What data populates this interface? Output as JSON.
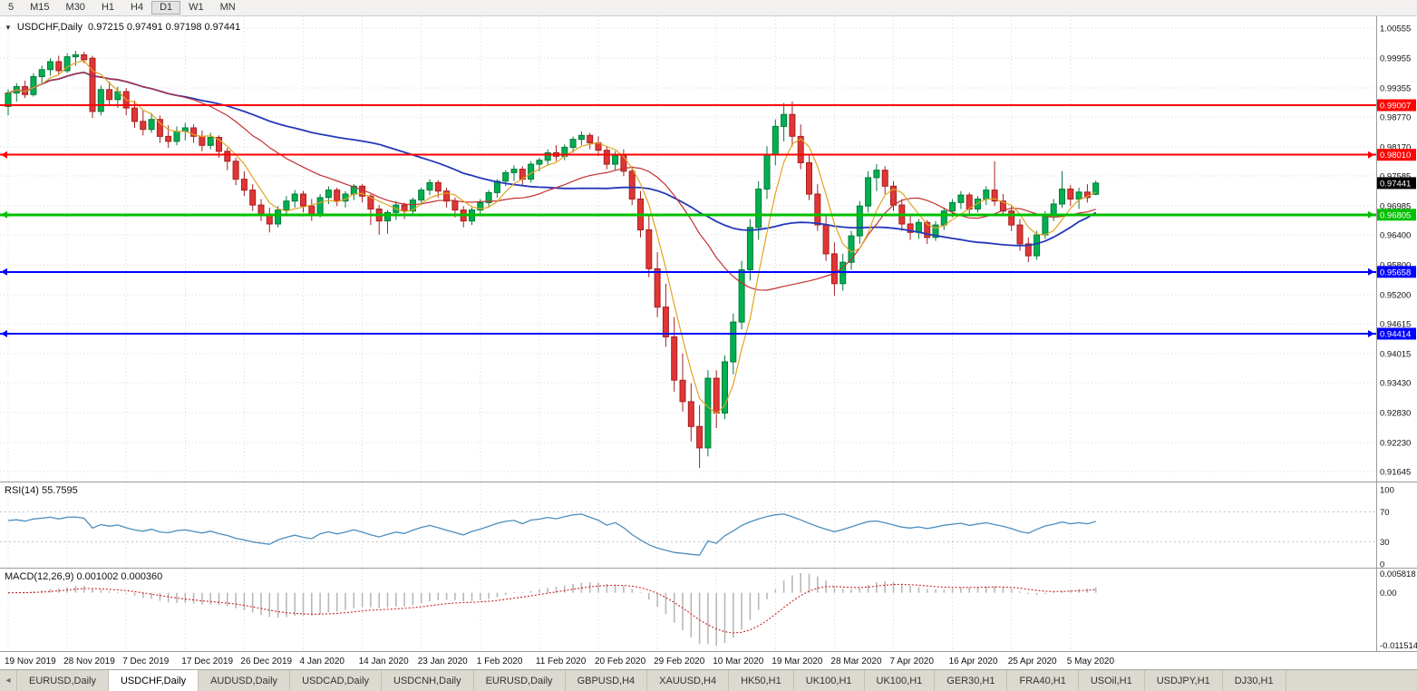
{
  "toolbar": {
    "timeframes": [
      {
        "label": "5"
      },
      {
        "label": "M15"
      },
      {
        "label": "M30"
      },
      {
        "label": "H1"
      },
      {
        "label": "H4"
      },
      {
        "label": "D1",
        "active": true
      },
      {
        "label": "W1"
      },
      {
        "label": "MN"
      }
    ]
  },
  "chart_header": {
    "symbol": "USDCHF,Daily",
    "ohlc": "0.97215 0.97491 0.97198 0.97441"
  },
  "rsi": {
    "label": "RSI(14) 55.7595"
  },
  "macd": {
    "label": "MACD(12,26,9) 0.001002 0.000360"
  },
  "tabbar": {
    "scroll_icon": "◂"
  },
  "tabs": [
    {
      "label": "EURUSD,Daily"
    },
    {
      "label": "USDCHF,Daily",
      "active": true
    },
    {
      "label": "AUDUSD,Daily"
    },
    {
      "label": "USDCAD,Daily"
    },
    {
      "label": "USDCNH,Daily"
    },
    {
      "label": "EURUSD,Daily"
    },
    {
      "label": "GBPUSD,H4"
    },
    {
      "label": "XAUUSD,H4"
    },
    {
      "label": "HK50,H1"
    },
    {
      "label": "UK100,H1"
    },
    {
      "label": "UK100,H1"
    },
    {
      "label": "GER30,H1"
    },
    {
      "label": "FRA40,H1"
    },
    {
      "label": "USOil,H1"
    },
    {
      "label": "USDJPY,H1"
    },
    {
      "label": "DJ30,H1"
    }
  ],
  "chart_data": {
    "type": "candlestick",
    "symbol": "USDCHF",
    "timeframe": "Daily",
    "price_axis": [
      "1.00555",
      "0.99955",
      "0.99355",
      "0.98770",
      "0.98170",
      "0.97585",
      "0.96985",
      "0.96400",
      "0.95800",
      "0.95200",
      "0.94615",
      "0.94015",
      "0.93430",
      "0.92830",
      "0.92230",
      "0.91645"
    ],
    "time_axis": [
      {
        "label": "19 Nov 2019",
        "index": 0
      },
      {
        "label": "28 Nov 2019",
        "index": 7
      },
      {
        "label": "7 Dec 2019",
        "index": 14
      },
      {
        "label": "17 Dec 2019",
        "index": 21
      },
      {
        "label": "26 Dec 2019",
        "index": 28
      },
      {
        "label": "4 Jan 2020",
        "index": 35
      },
      {
        "label": "14 Jan 2020",
        "index": 42
      },
      {
        "label": "23 Jan 2020",
        "index": 49
      },
      {
        "label": "1 Feb 2020",
        "index": 56
      },
      {
        "label": "11 Feb 2020",
        "index": 63
      },
      {
        "label": "20 Feb 2020",
        "index": 70
      },
      {
        "label": "29 Feb 2020",
        "index": 77
      },
      {
        "label": "10 Mar 2020",
        "index": 84
      },
      {
        "label": "19 Mar 2020",
        "index": 91
      },
      {
        "label": "28 Mar 2020",
        "index": 98
      },
      {
        "label": "7 Apr 2020",
        "index": 105
      },
      {
        "label": "16 Apr 2020",
        "index": 112
      },
      {
        "label": "25 Apr 2020",
        "index": 119
      },
      {
        "label": "5 May 2020",
        "index": 126
      }
    ],
    "candles": [
      [
        0.9898,
        0.9932,
        0.988,
        0.9925
      ],
      [
        0.9925,
        0.9945,
        0.9908,
        0.9938
      ],
      [
        0.9938,
        0.995,
        0.9915,
        0.9922
      ],
      [
        0.9922,
        0.9965,
        0.9918,
        0.9958
      ],
      [
        0.9958,
        0.998,
        0.9945,
        0.9972
      ],
      [
        0.9972,
        0.9995,
        0.996,
        0.9988
      ],
      [
        0.9988,
        1.0,
        0.9962,
        0.997
      ],
      [
        0.997,
        1.0005,
        0.9965,
        0.9998
      ],
      [
        0.9998,
        1.001,
        0.998,
        1.0002
      ],
      [
        1.0002,
        1.0008,
        0.9985,
        0.9992
      ],
      [
        0.9995,
        1.0,
        0.9875,
        0.9888
      ],
      [
        0.9888,
        0.994,
        0.988,
        0.9932
      ],
      [
        0.9932,
        0.9948,
        0.99,
        0.9912
      ],
      [
        0.9912,
        0.9938,
        0.9895,
        0.9928
      ],
      [
        0.9928,
        0.9935,
        0.988,
        0.9895
      ],
      [
        0.9895,
        0.991,
        0.9855,
        0.9868
      ],
      [
        0.9868,
        0.989,
        0.984,
        0.9852
      ],
      [
        0.9852,
        0.9885,
        0.9845,
        0.9872
      ],
      [
        0.9872,
        0.988,
        0.9825,
        0.9838
      ],
      [
        0.9838,
        0.986,
        0.9815,
        0.9828
      ],
      [
        0.9828,
        0.9858,
        0.982,
        0.9848
      ],
      [
        0.9848,
        0.9865,
        0.983,
        0.9855
      ],
      [
        0.9855,
        0.9862,
        0.9825,
        0.9838
      ],
      [
        0.9838,
        0.985,
        0.9808,
        0.982
      ],
      [
        0.982,
        0.9845,
        0.9812,
        0.9836
      ],
      [
        0.9836,
        0.984,
        0.9795,
        0.9808
      ],
      [
        0.9808,
        0.9815,
        0.977,
        0.9788
      ],
      [
        0.9788,
        0.9795,
        0.974,
        0.9752
      ],
      [
        0.9752,
        0.9768,
        0.9718,
        0.973
      ],
      [
        0.973,
        0.9742,
        0.9688,
        0.97
      ],
      [
        0.97,
        0.9712,
        0.9668,
        0.968
      ],
      [
        0.968,
        0.9695,
        0.9645,
        0.9662
      ],
      [
        0.9662,
        0.9698,
        0.9655,
        0.969
      ],
      [
        0.969,
        0.9718,
        0.968,
        0.9708
      ],
      [
        0.9708,
        0.973,
        0.9695,
        0.9722
      ],
      [
        0.9722,
        0.9728,
        0.9685,
        0.9698
      ],
      [
        0.9698,
        0.9712,
        0.9668,
        0.9682
      ],
      [
        0.9682,
        0.9722,
        0.9675,
        0.9715
      ],
      [
        0.9715,
        0.9738,
        0.9702,
        0.973
      ],
      [
        0.973,
        0.9735,
        0.9698,
        0.9708
      ],
      [
        0.9708,
        0.9728,
        0.9695,
        0.9722
      ],
      [
        0.9722,
        0.9742,
        0.971,
        0.9738
      ],
      [
        0.9738,
        0.9742,
        0.9705,
        0.9718
      ],
      [
        0.9718,
        0.9722,
        0.966,
        0.9692
      ],
      [
        0.9692,
        0.97,
        0.964,
        0.9668
      ],
      [
        0.9668,
        0.969,
        0.9642,
        0.9685
      ],
      [
        0.9685,
        0.9708,
        0.967,
        0.97
      ],
      [
        0.97,
        0.9705,
        0.9672,
        0.9688
      ],
      [
        0.9688,
        0.9715,
        0.968,
        0.971
      ],
      [
        0.971,
        0.9735,
        0.97,
        0.973
      ],
      [
        0.973,
        0.9752,
        0.972,
        0.9745
      ],
      [
        0.9745,
        0.975,
        0.9715,
        0.9728
      ],
      [
        0.9728,
        0.9735,
        0.9695,
        0.9708
      ],
      [
        0.9708,
        0.9715,
        0.9675,
        0.969
      ],
      [
        0.969,
        0.9698,
        0.9655,
        0.9668
      ],
      [
        0.9668,
        0.9695,
        0.966,
        0.969
      ],
      [
        0.969,
        0.9712,
        0.968,
        0.9705
      ],
      [
        0.9705,
        0.973,
        0.9695,
        0.9725
      ],
      [
        0.9725,
        0.9752,
        0.9715,
        0.9748
      ],
      [
        0.9748,
        0.977,
        0.9738,
        0.9765
      ],
      [
        0.9765,
        0.978,
        0.9748,
        0.9772
      ],
      [
        0.9772,
        0.9778,
        0.974,
        0.9752
      ],
      [
        0.9752,
        0.9788,
        0.9745,
        0.9782
      ],
      [
        0.9782,
        0.9795,
        0.9768,
        0.979
      ],
      [
        0.979,
        0.9812,
        0.978,
        0.9805
      ],
      [
        0.9805,
        0.982,
        0.9788,
        0.9798
      ],
      [
        0.9798,
        0.9822,
        0.979,
        0.9816
      ],
      [
        0.9816,
        0.9838,
        0.9805,
        0.9832
      ],
      [
        0.9832,
        0.9848,
        0.982,
        0.984
      ],
      [
        0.984,
        0.9845,
        0.9812,
        0.9825
      ],
      [
        0.9825,
        0.9838,
        0.9798,
        0.981
      ],
      [
        0.981,
        0.9818,
        0.9772,
        0.9782
      ],
      [
        0.9782,
        0.9808,
        0.977,
        0.98
      ],
      [
        0.98,
        0.9812,
        0.9758,
        0.9768
      ],
      [
        0.9768,
        0.9778,
        0.97,
        0.9712
      ],
      [
        0.9712,
        0.9728,
        0.9635,
        0.965
      ],
      [
        0.965,
        0.968,
        0.9555,
        0.9572
      ],
      [
        0.9572,
        0.9605,
        0.9475,
        0.9495
      ],
      [
        0.9495,
        0.9542,
        0.9415,
        0.9435
      ],
      [
        0.9435,
        0.9475,
        0.9325,
        0.9348
      ],
      [
        0.9348,
        0.9402,
        0.9285,
        0.9305
      ],
      [
        0.9305,
        0.9342,
        0.9225,
        0.9255
      ],
      [
        0.9255,
        0.9298,
        0.9172,
        0.9212
      ],
      [
        0.9212,
        0.9368,
        0.9195,
        0.9352
      ],
      [
        0.9352,
        0.9368,
        0.9252,
        0.9282
      ],
      [
        0.9282,
        0.9398,
        0.927,
        0.9385
      ],
      [
        0.9385,
        0.9482,
        0.936,
        0.9465
      ],
      [
        0.9465,
        0.9588,
        0.945,
        0.957
      ],
      [
        0.957,
        0.9672,
        0.9548,
        0.9655
      ],
      [
        0.9655,
        0.9748,
        0.963,
        0.9732
      ],
      [
        0.9732,
        0.9818,
        0.9712,
        0.9802
      ],
      [
        0.9802,
        0.9872,
        0.978,
        0.9858
      ],
      [
        0.9858,
        0.9905,
        0.9828,
        0.9882
      ],
      [
        0.9882,
        0.9908,
        0.9818,
        0.9838
      ],
      [
        0.9838,
        0.9862,
        0.9772,
        0.9785
      ],
      [
        0.9785,
        0.98,
        0.971,
        0.9722
      ],
      [
        0.9722,
        0.9742,
        0.9648,
        0.966
      ],
      [
        0.966,
        0.968,
        0.9588,
        0.9602
      ],
      [
        0.9602,
        0.9625,
        0.9518,
        0.9542
      ],
      [
        0.9542,
        0.9602,
        0.9528,
        0.9585
      ],
      [
        0.9585,
        0.9648,
        0.957,
        0.9638
      ],
      [
        0.9638,
        0.9708,
        0.9622,
        0.9698
      ],
      [
        0.9698,
        0.9768,
        0.9685,
        0.9755
      ],
      [
        0.9755,
        0.9782,
        0.9728,
        0.977
      ],
      [
        0.977,
        0.9778,
        0.9722,
        0.9738
      ],
      [
        0.9738,
        0.9748,
        0.9688,
        0.97
      ],
      [
        0.97,
        0.9712,
        0.9648,
        0.9662
      ],
      [
        0.9662,
        0.968,
        0.963,
        0.9645
      ],
      [
        0.9645,
        0.9672,
        0.9632,
        0.9665
      ],
      [
        0.9665,
        0.967,
        0.9622,
        0.9635
      ],
      [
        0.9635,
        0.9668,
        0.9628,
        0.966
      ],
      [
        0.966,
        0.9695,
        0.965,
        0.9688
      ],
      [
        0.9688,
        0.9712,
        0.9675,
        0.9705
      ],
      [
        0.9705,
        0.9728,
        0.9692,
        0.972
      ],
      [
        0.972,
        0.9725,
        0.9682,
        0.9692
      ],
      [
        0.9692,
        0.9718,
        0.9685,
        0.9712
      ],
      [
        0.9712,
        0.9738,
        0.97,
        0.973
      ],
      [
        0.973,
        0.9788,
        0.9698,
        0.9708
      ],
      [
        0.9708,
        0.9722,
        0.9678,
        0.9688
      ],
      [
        0.9688,
        0.9698,
        0.9648,
        0.966
      ],
      [
        0.966,
        0.9672,
        0.9608,
        0.9622
      ],
      [
        0.9622,
        0.9635,
        0.9585,
        0.9598
      ],
      [
        0.9598,
        0.9648,
        0.959,
        0.964
      ],
      [
        0.964,
        0.9688,
        0.9632,
        0.968
      ],
      [
        0.968,
        0.9712,
        0.9668,
        0.9702
      ],
      [
        0.9702,
        0.9768,
        0.9695,
        0.9732
      ],
      [
        0.9732,
        0.974,
        0.9698,
        0.9712
      ],
      [
        0.9712,
        0.9735,
        0.9692,
        0.9726
      ],
      [
        0.9726,
        0.9742,
        0.9705,
        0.9715
      ],
      [
        0.97215,
        0.97491,
        0.97198,
        0.97441
      ]
    ],
    "hlines": [
      {
        "price": 0.99007,
        "label": "0.99007",
        "color": "#FF0000",
        "width": 2,
        "markers": false
      },
      {
        "price": 0.9801,
        "label": "0.98010",
        "color": "#FF0000",
        "width": 2,
        "markers": true
      },
      {
        "price": 0.96805,
        "label": "0.96805",
        "color": "#00C000",
        "width": 3,
        "markers": true
      },
      {
        "price": 0.95658,
        "label": "0.95658",
        "color": "#0000FF",
        "width": 2,
        "markers": true
      },
      {
        "price": 0.94414,
        "label": "0.94414",
        "color": "#0000FF",
        "width": 2,
        "markers": true
      }
    ],
    "current_price": {
      "value": 0.97441,
      "label": "0.97441"
    },
    "moving_averages": [
      {
        "period": 45,
        "color": "#2438B8",
        "width": 1.8
      },
      {
        "period": 20,
        "color": "#C23030",
        "width": 1.2
      },
      {
        "period": 5,
        "color": "#DFA422",
        "width": 1.2
      }
    ],
    "rsi_panel": {
      "value": "55.7595",
      "levels": [
        "100",
        "70",
        "30",
        "0"
      ],
      "level_lines": [
        70,
        30
      ],
      "color": "#4C8EBE"
    },
    "macd_panel": {
      "values": [
        "0.001002",
        "0.000360"
      ],
      "axis_labels": [
        "0.005818",
        "0.00",
        "-0.011514"
      ],
      "hist_color": "#B8B8B8",
      "signal_color": "#CC2222"
    },
    "colors": {
      "up": "#00B050",
      "up_border": "#007A38",
      "down": "#E23535",
      "down_border": "#A32020"
    }
  }
}
